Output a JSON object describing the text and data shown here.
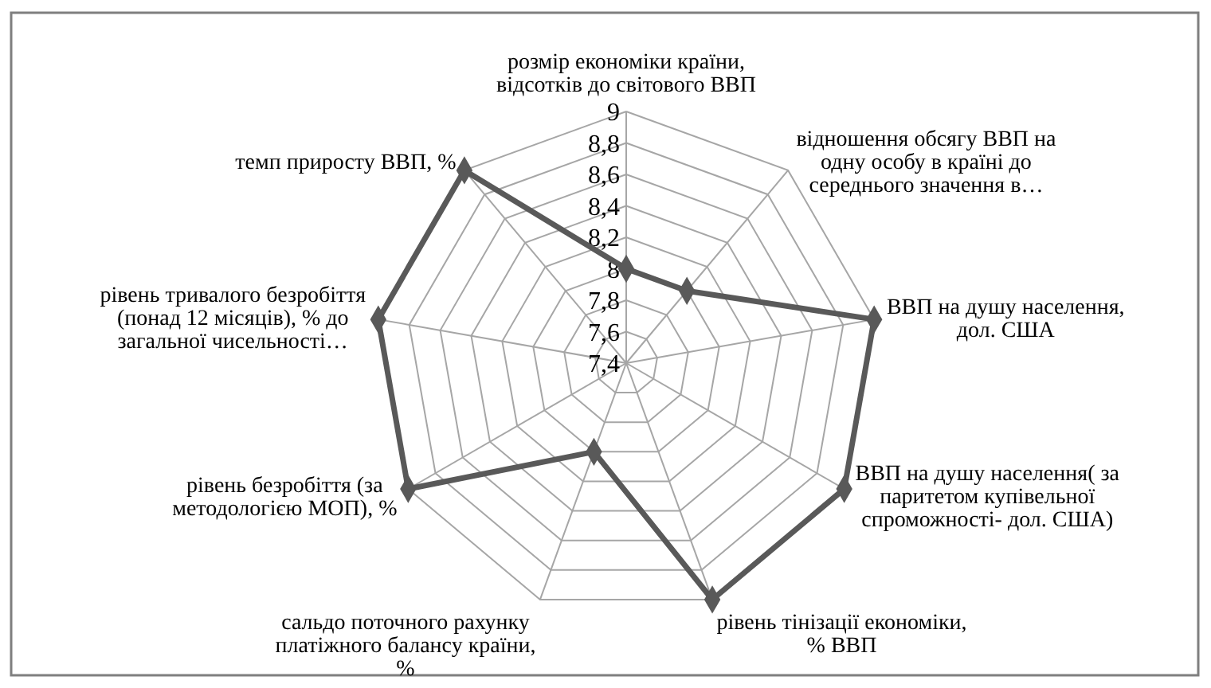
{
  "chart_data": {
    "type": "radar",
    "categories": [
      "розмір економіки країни, відсотків до світового ВВП",
      "відношення обсягу ВВП на одну особу в країні до середнього значення в…",
      "ВВП на душу населення, дол. США",
      "ВВП на душу населення( за паритетом купівельної спроможності- дол. США)",
      "рівень тінізації економіки, % ВВП",
      "сальдо поточного рахунку платіжного балансу країни, %",
      "рівень безробіття (за методологією МОП), %",
      "рівень тривалого безробіття (понад 12 місяців), % до загальної чисельності…",
      "темп приросту ВВП, %"
    ],
    "series": [
      {
        "color": "#595959",
        "values": [
          8.0,
          8.0,
          9.0,
          9.0,
          9.0,
          8.0,
          9.0,
          9.0,
          9.0
        ]
      }
    ],
    "ylim": [
      7.4,
      9
    ],
    "yticks": [
      {
        "value": 7.4,
        "label": "7,4"
      },
      {
        "value": 7.6,
        "label": "7,6"
      },
      {
        "value": 7.8,
        "label": "7,8"
      },
      8,
      {
        "value": 8.2,
        "label": "8,2"
      },
      {
        "value": 8.4,
        "label": "8,4"
      },
      {
        "value": 8.6,
        "label": "8,6"
      },
      {
        "value": 8.8,
        "label": "8,8"
      },
      9
    ],
    "grid": true,
    "marker": "diamond",
    "line_style": "solid"
  }
}
